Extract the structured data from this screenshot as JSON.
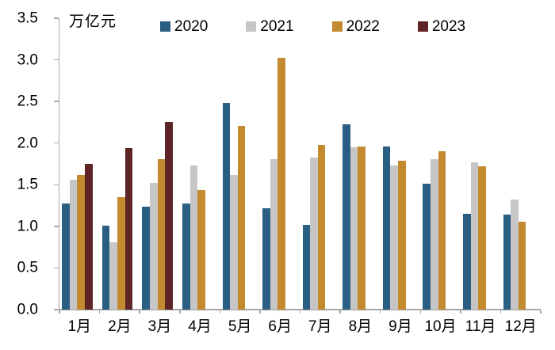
{
  "chart_data": {
    "type": "bar",
    "title": "",
    "ylabel": "万亿元",
    "xlabel": "",
    "grid": false,
    "legend_position": "top",
    "ylim": [
      0,
      3.5
    ],
    "ytick_step": 0.5,
    "ytick_labels": [
      "0.0",
      "0.5",
      "1.0",
      "1.5",
      "2.0",
      "2.5",
      "3.0",
      "3.5"
    ],
    "categories": [
      "1月",
      "2月",
      "3月",
      "4月",
      "5月",
      "6月",
      "7月",
      "8月",
      "9月",
      "10月",
      "11月",
      "12月"
    ],
    "series": [
      {
        "name": "2020",
        "color": "#2A5E82",
        "values": [
          1.27,
          1.01,
          1.24,
          1.27,
          2.48,
          1.22,
          1.02,
          2.23,
          1.96,
          1.51,
          1.15,
          1.14
        ]
      },
      {
        "name": "2021",
        "color": "#C6C6C6",
        "values": [
          1.56,
          0.81,
          1.52,
          1.73,
          1.62,
          1.81,
          1.83,
          1.95,
          1.73,
          1.81,
          1.77,
          1.32
        ]
      },
      {
        "name": "2022",
        "color": "#C48A2F",
        "values": [
          1.62,
          1.35,
          1.81,
          1.44,
          2.21,
          3.02,
          1.98,
          1.96,
          1.79,
          1.9,
          1.72,
          1.06
        ]
      },
      {
        "name": "2023",
        "color": "#5E2426",
        "values": [
          1.75,
          1.94,
          2.25,
          null,
          null,
          null,
          null,
          null,
          null,
          null,
          null,
          null
        ]
      }
    ],
    "axis_color": "#A6A6A6",
    "text_color": "#000000"
  }
}
